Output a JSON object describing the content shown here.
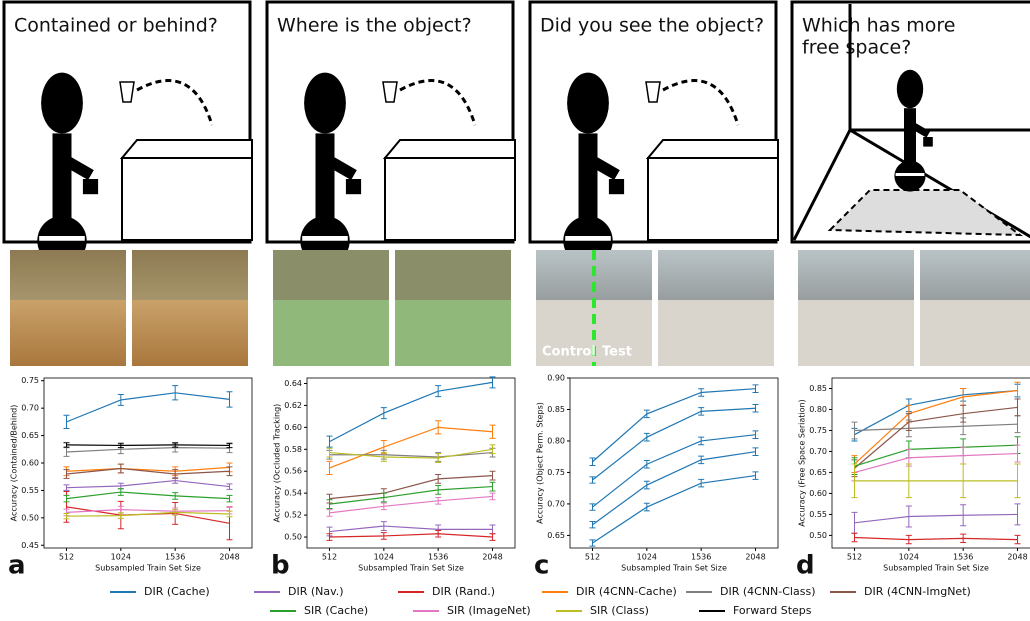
{
  "panels": [
    {
      "question": [
        "Contained or behind?"
      ],
      "letter": "a"
    },
    {
      "question": [
        "Where is the object?"
      ],
      "letter": "b"
    },
    {
      "question": [
        "Did you see the object?"
      ],
      "letter": "c",
      "photo_text": [
        "Control",
        "Test"
      ]
    },
    {
      "question": [
        "Which has more",
        "free space?"
      ],
      "letter": "d"
    }
  ],
  "legend": [
    {
      "name": "DIR (Cache)",
      "color": "#1f77b4"
    },
    {
      "name": "DIR (Nav.)",
      "color": "#9467bd"
    },
    {
      "name": "DIR (Rand.)",
      "color": "#d62728"
    },
    {
      "name": "DIR (4CNN-Cache)",
      "color": "#ff7f0e"
    },
    {
      "name": "DIR (4CNN-Class)",
      "color": "#7f7f7f"
    },
    {
      "name": "DIR (4CNN-ImgNet)",
      "color": "#8c564b"
    },
    {
      "name": "SIR (Cache)",
      "color": "#2ca02c"
    },
    {
      "name": "SIR (ImageNet)",
      "color": "#e377c2"
    },
    {
      "name": "SIR (Class)",
      "color": "#bcbd22"
    },
    {
      "name": "Forward Steps",
      "color": "#000000"
    }
  ],
  "chart_data": [
    {
      "type": "line",
      "ylabel": "Accuracy (Contained/Behind)",
      "xlabel": "Subsampled Train Set Size",
      "x": [
        512,
        1024,
        1536,
        2048
      ],
      "xlim": [
        300,
        2260
      ],
      "xticks": [
        512,
        1024,
        1536,
        2048
      ],
      "ylim": [
        0.445,
        0.755
      ],
      "yticks": [
        0.45,
        {
          "value": 0.5,
          "label": "0.50"
        },
        0.55,
        {
          "value": 0.6,
          "label": "0.60"
        },
        0.65,
        {
          "value": 0.7,
          "label": "0.70"
        },
        0.75
      ],
      "series": [
        {
          "color": "#1f77b4",
          "values": [
            0.675,
            0.715,
            0.728,
            0.716
          ],
          "errors": [
            0.012,
            0.01,
            0.013,
            0.014
          ]
        },
        {
          "color": "#9467bd",
          "values": [
            0.555,
            0.558,
            0.568,
            0.557
          ],
          "errors": [
            0.005,
            0.005,
            0.005,
            0.005
          ]
        },
        {
          "color": "#d62728",
          "values": [
            0.52,
            0.505,
            0.508,
            0.49
          ],
          "errors": [
            0.028,
            0.025,
            0.02,
            0.03
          ]
        },
        {
          "color": "#ff7f0e",
          "values": [
            0.585,
            0.59,
            0.585,
            0.592
          ],
          "errors": [
            0.008,
            0.008,
            0.008,
            0.008
          ]
        },
        {
          "color": "#7f7f7f",
          "values": [
            0.62,
            0.625,
            0.628,
            0.627
          ],
          "errors": [
            0.008,
            0.008,
            0.008,
            0.008
          ]
        },
        {
          "color": "#8c564b",
          "values": [
            0.58,
            0.59,
            0.58,
            0.585
          ],
          "errors": [
            0.008,
            0.008,
            0.008,
            0.008
          ]
        },
        {
          "color": "#2ca02c",
          "values": [
            0.535,
            0.547,
            0.54,
            0.535
          ],
          "errors": [
            0.006,
            0.006,
            0.006,
            0.006
          ]
        },
        {
          "color": "#e377c2",
          "values": [
            0.51,
            0.515,
            0.512,
            0.513
          ],
          "errors": [
            0.006,
            0.006,
            0.006,
            0.006
          ]
        },
        {
          "color": "#bcbd22",
          "values": [
            0.503,
            0.504,
            0.51,
            0.507
          ],
          "errors": [
            0.005,
            0.005,
            0.005,
            0.005
          ]
        },
        {
          "color": "#000000",
          "values": [
            0.633,
            0.632,
            0.633,
            0.632
          ],
          "errors": [
            0.004,
            0.004,
            0.004,
            0.004
          ]
        }
      ]
    },
    {
      "type": "line",
      "ylabel": "Accuracy (Occluded Tracking)",
      "xlabel": "Subsampled Train Set Size",
      "x": [
        512,
        1024,
        1536,
        2048
      ],
      "xlim": [
        300,
        2260
      ],
      "xticks": [
        512,
        1024,
        1536,
        2048
      ],
      "ylim": [
        0.49,
        0.645
      ],
      "yticks": [
        {
          "value": 0.5,
          "label": "0.50"
        },
        0.52,
        0.54,
        0.56,
        0.58,
        {
          "value": 0.6,
          "label": "0.60"
        },
        0.62,
        0.64
      ],
      "series": [
        {
          "color": "#1f77b4",
          "values": [
            0.587,
            0.613,
            0.633,
            0.641
          ],
          "errors": [
            0.005,
            0.005,
            0.005,
            0.005
          ]
        },
        {
          "color": "#9467bd",
          "values": [
            0.505,
            0.51,
            0.507,
            0.507
          ],
          "errors": [
            0.004,
            0.004,
            0.004,
            0.004
          ]
        },
        {
          "color": "#d62728",
          "values": [
            0.5,
            0.501,
            0.503,
            0.5
          ],
          "errors": [
            0.003,
            0.003,
            0.003,
            0.003
          ]
        },
        {
          "color": "#ff7f0e",
          "values": [
            0.563,
            0.582,
            0.6,
            0.596
          ],
          "errors": [
            0.006,
            0.006,
            0.006,
            0.006
          ]
        },
        {
          "color": "#7f7f7f",
          "values": [
            0.575,
            0.575,
            0.573,
            0.577
          ],
          "errors": [
            0.004,
            0.004,
            0.004,
            0.004
          ]
        },
        {
          "color": "#8c564b",
          "values": [
            0.535,
            0.54,
            0.553,
            0.556
          ],
          "errors": [
            0.004,
            0.004,
            0.004,
            0.004
          ]
        },
        {
          "color": "#2ca02c",
          "values": [
            0.53,
            0.536,
            0.543,
            0.546
          ],
          "errors": [
            0.004,
            0.004,
            0.004,
            0.004
          ]
        },
        {
          "color": "#e377c2",
          "values": [
            0.522,
            0.528,
            0.533,
            0.537
          ],
          "errors": [
            0.003,
            0.003,
            0.003,
            0.003
          ]
        },
        {
          "color": "#bcbd22",
          "values": [
            0.577,
            0.573,
            0.572,
            0.58
          ],
          "errors": [
            0.004,
            0.004,
            0.004,
            0.004
          ]
        }
      ]
    },
    {
      "type": "line",
      "ylabel": "Accuracy (Object Perm. Steps)",
      "xlabel": "Subsampled Train Set Size",
      "x": [
        512,
        1024,
        1536,
        2048
      ],
      "xlim": [
        300,
        2260
      ],
      "xticks": [
        512,
        1024,
        1536,
        2048
      ],
      "ylim": [
        0.63,
        0.9
      ],
      "yticks": [
        0.65,
        {
          "value": 0.7,
          "label": "0.70"
        },
        0.75,
        {
          "value": 0.8,
          "label": "0.80"
        },
        0.85,
        {
          "value": 0.9,
          "label": "0.90"
        }
      ],
      "series": [
        {
          "color": "#1f77b4",
          "values": [
            0.638,
            0.695,
            0.733,
            0.745
          ],
          "errors": [
            0.005,
            0.006,
            0.006,
            0.006
          ]
        },
        {
          "color": "#1f77b4",
          "values": [
            0.667,
            0.73,
            0.77,
            0.783
          ],
          "errors": [
            0.005,
            0.006,
            0.006,
            0.006
          ]
        },
        {
          "color": "#1f77b4",
          "values": [
            0.695,
            0.763,
            0.8,
            0.81
          ],
          "errors": [
            0.005,
            0.006,
            0.006,
            0.006
          ]
        },
        {
          "color": "#1f77b4",
          "values": [
            0.738,
            0.806,
            0.847,
            0.852
          ],
          "errors": [
            0.005,
            0.006,
            0.006,
            0.006
          ]
        },
        {
          "color": "#1f77b4",
          "values": [
            0.767,
            0.843,
            0.877,
            0.883
          ],
          "errors": [
            0.006,
            0.006,
            0.006,
            0.006
          ]
        }
      ]
    },
    {
      "type": "line",
      "ylabel": "Accuracy (Free Space Seriation)",
      "xlabel": "Subsampled Train Set Size",
      "x": [
        512,
        1024,
        1536,
        2048
      ],
      "xlim": [
        300,
        2260
      ],
      "xticks": [
        512,
        1024,
        1536,
        2048
      ],
      "ylim": [
        0.47,
        0.875
      ],
      "yticks": [
        {
          "value": 0.5,
          "label": "0.50"
        },
        0.55,
        {
          "value": 0.6,
          "label": "0.60"
        },
        0.65,
        {
          "value": 0.7,
          "label": "0.70"
        },
        0.75,
        {
          "value": 0.8,
          "label": "0.80"
        },
        0.85
      ],
      "series": [
        {
          "color": "#1f77b4",
          "values": [
            0.74,
            0.81,
            0.835,
            0.845
          ],
          "errors": [
            0.015,
            0.015,
            0.015,
            0.015
          ]
        },
        {
          "color": "#9467bd",
          "values": [
            0.53,
            0.545,
            0.548,
            0.55
          ],
          "errors": [
            0.025,
            0.025,
            0.025,
            0.025
          ]
        },
        {
          "color": "#d62728",
          "values": [
            0.495,
            0.49,
            0.493,
            0.49
          ],
          "errors": [
            0.01,
            0.01,
            0.01,
            0.01
          ]
        },
        {
          "color": "#ff7f0e",
          "values": [
            0.67,
            0.79,
            0.83,
            0.845
          ],
          "errors": [
            0.02,
            0.02,
            0.02,
            0.02
          ]
        },
        {
          "color": "#7f7f7f",
          "values": [
            0.75,
            0.755,
            0.76,
            0.765
          ],
          "errors": [
            0.02,
            0.02,
            0.02,
            0.02
          ]
        },
        {
          "color": "#8c564b",
          "values": [
            0.66,
            0.77,
            0.79,
            0.805
          ],
          "errors": [
            0.02,
            0.02,
            0.02,
            0.02
          ]
        },
        {
          "color": "#2ca02c",
          "values": [
            0.665,
            0.705,
            0.71,
            0.715
          ],
          "errors": [
            0.02,
            0.02,
            0.02,
            0.02
          ]
        },
        {
          "color": "#e377c2",
          "values": [
            0.65,
            0.685,
            0.69,
            0.695
          ],
          "errors": [
            0.02,
            0.02,
            0.02,
            0.02
          ]
        },
        {
          "color": "#bcbd22",
          "values": [
            0.63,
            0.63,
            0.63,
            0.63
          ],
          "errors": [
            0.04,
            0.04,
            0.04,
            0.04
          ]
        }
      ]
    }
  ]
}
